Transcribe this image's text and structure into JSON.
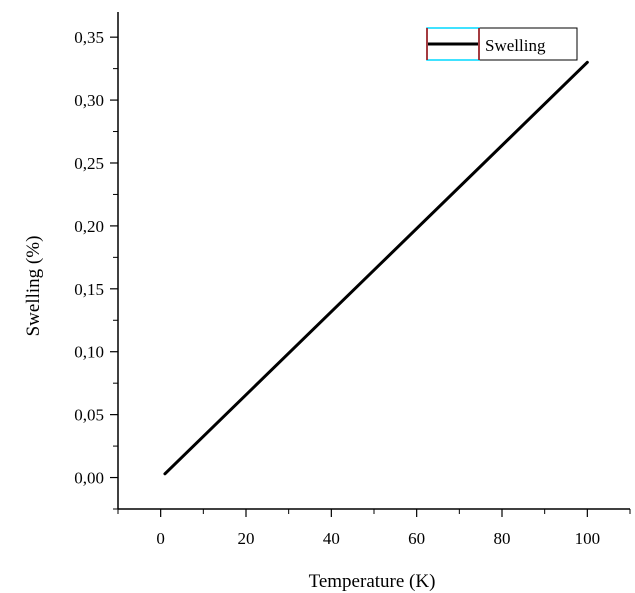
{
  "chart_data": {
    "type": "line",
    "xlabel": "Temperature (K)",
    "ylabel": "Swelling (%)",
    "xlim": [
      -10,
      110
    ],
    "ylim": [
      -0.025,
      0.37
    ],
    "x_ticks": [
      0,
      20,
      40,
      60,
      80,
      100
    ],
    "x_tick_labels": [
      "0",
      "20",
      "40",
      "60",
      "80",
      "100"
    ],
    "y_ticks": [
      0.0,
      0.05,
      0.1,
      0.15,
      0.2,
      0.25,
      0.3,
      0.35
    ],
    "y_tick_labels": [
      "0,00",
      "0,05",
      "0,10",
      "0,15",
      "0,20",
      "0,25",
      "0,30",
      "0,35"
    ],
    "grid": false,
    "legend_position": "top-right",
    "series": [
      {
        "name": "Swelling",
        "color": "#000000",
        "x": [
          1,
          100
        ],
        "y": [
          0.003,
          0.33
        ]
      }
    ]
  }
}
